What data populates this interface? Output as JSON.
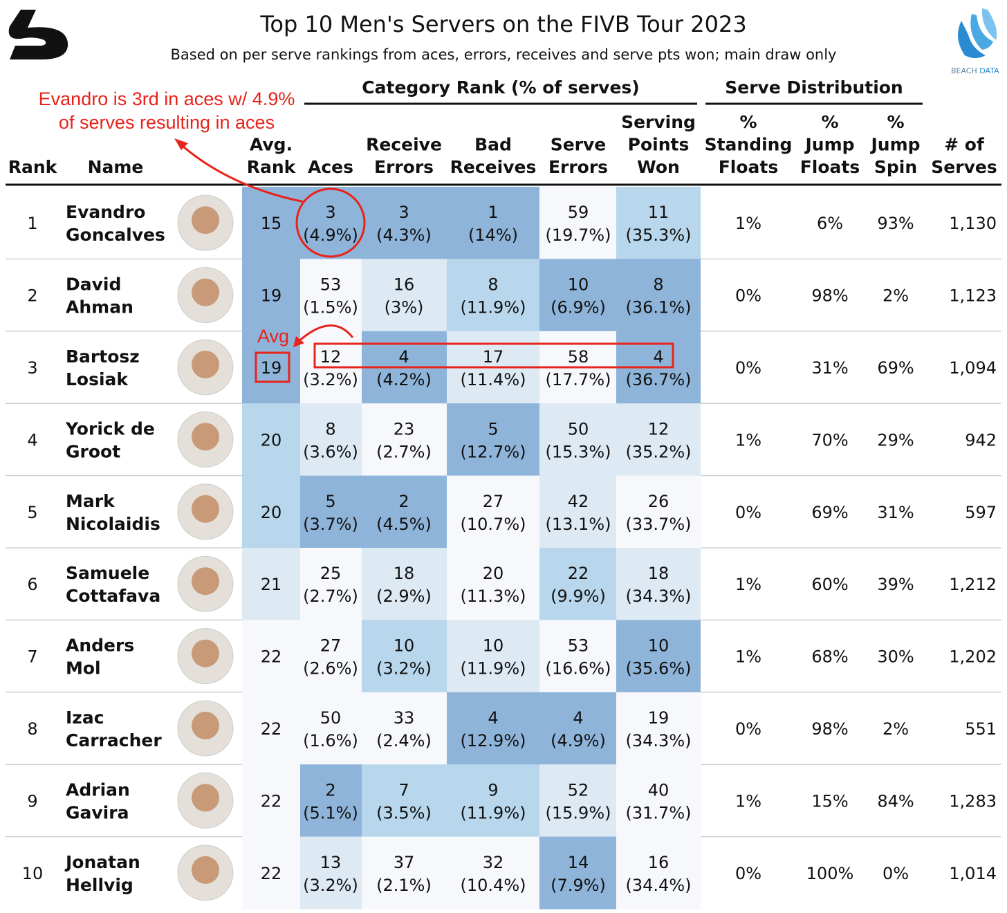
{
  "header": {
    "title": "Top 10 Men's Servers on the FIVB Tour 2023",
    "subtitle": "Based on per serve rankings from aces, errors, receives and serve pts won; main draw only",
    "logo_text": [
      "BEACH",
      "DATA"
    ]
  },
  "annotations": {
    "aces_note": [
      "Evandro is 3rd in aces w/ 4.9%",
      "of serves resulting in aces"
    ],
    "avg_note": "Avg"
  },
  "table": {
    "groups": [
      "Category Rank (% of serves)",
      "Serve Distribution"
    ],
    "columns": [
      [
        "Rank"
      ],
      [
        "Name"
      ],
      [
        "Avg.",
        "Rank"
      ],
      [
        "Aces"
      ],
      [
        "Receive",
        "Errors"
      ],
      [
        "Bad",
        "Receives"
      ],
      [
        "Serve",
        "Errors"
      ],
      [
        "Serving",
        "Points",
        "Won"
      ],
      [
        "%",
        "Standing",
        "Floats"
      ],
      [
        "%",
        "Jump",
        "Floats"
      ],
      [
        "%",
        "Jump",
        "Spin"
      ],
      [
        "# of",
        "Serves"
      ]
    ],
    "dark_cell_color": "#8fb4d9",
    "dark_cell_text_color": "#ffffff",
    "rows": [
      {
        "rank": 1,
        "name": [
          "Evandro",
          "Goncalves"
        ],
        "avg_rank": 15,
        "categories": [
          {
            "rank": 3,
            "pct": "(4.9%)"
          },
          {
            "rank": 3,
            "pct": "(4.3%)"
          },
          {
            "rank": 1,
            "pct": "(14%)"
          },
          {
            "rank": 59,
            "pct": "(19.7%)"
          },
          {
            "rank": 11,
            "pct": "(35.3%)"
          }
        ],
        "distribution": [
          "1%",
          "6%",
          "93%"
        ],
        "serves": "1,130",
        "colors": [
          "#8fb4d9",
          "#8fb4d9",
          "#8fb4d9",
          "#8fb4d9",
          "#f6f8fc",
          "#b8d7ec"
        ]
      },
      {
        "rank": 2,
        "name": [
          "David",
          "Ahman"
        ],
        "avg_rank": 19,
        "categories": [
          {
            "rank": 53,
            "pct": "(1.5%)"
          },
          {
            "rank": 16,
            "pct": "(3%)"
          },
          {
            "rank": 8,
            "pct": "(11.9%)"
          },
          {
            "rank": 10,
            "pct": "(6.9%)"
          },
          {
            "rank": 8,
            "pct": "(36.1%)"
          }
        ],
        "distribution": [
          "0%",
          "98%",
          "2%"
        ],
        "serves": "1,123",
        "colors": [
          "#8fb4d9",
          "#f6f8fc",
          "#dde9f3",
          "#b8d7ec",
          "#8fb4d9",
          "#8fb4d9"
        ]
      },
      {
        "rank": 3,
        "name": [
          "Bartosz",
          "Losiak"
        ],
        "avg_rank": 19,
        "categories": [
          {
            "rank": 12,
            "pct": "(3.2%)"
          },
          {
            "rank": 4,
            "pct": "(4.2%)"
          },
          {
            "rank": 17,
            "pct": "(11.4%)"
          },
          {
            "rank": 58,
            "pct": "(17.7%)"
          },
          {
            "rank": 4,
            "pct": "(36.7%)"
          }
        ],
        "distribution": [
          "0%",
          "31%",
          "69%"
        ],
        "serves": "1,094",
        "colors": [
          "#8fb4d9",
          "#f6f8fc",
          "#8fb4d9",
          "#dde9f3",
          "#f6f8fc",
          "#8fb4d9"
        ]
      },
      {
        "rank": 4,
        "name": [
          "Yorick de",
          "Groot"
        ],
        "avg_rank": 20,
        "categories": [
          {
            "rank": 8,
            "pct": "(3.6%)"
          },
          {
            "rank": 23,
            "pct": "(2.7%)"
          },
          {
            "rank": 5,
            "pct": "(12.7%)"
          },
          {
            "rank": 50,
            "pct": "(15.3%)"
          },
          {
            "rank": 12,
            "pct": "(35.2%)"
          }
        ],
        "distribution": [
          "1%",
          "70%",
          "29%"
        ],
        "serves": "942",
        "colors": [
          "#b8d7ec",
          "#dde9f3",
          "#f6f8fc",
          "#8fb4d9",
          "#dde9f3",
          "#dde9f3"
        ]
      },
      {
        "rank": 5,
        "name": [
          "Mark",
          "Nicolaidis"
        ],
        "avg_rank": 20,
        "categories": [
          {
            "rank": 5,
            "pct": "(3.7%)"
          },
          {
            "rank": 2,
            "pct": "(4.5%)"
          },
          {
            "rank": 27,
            "pct": "(10.7%)"
          },
          {
            "rank": 42,
            "pct": "(13.1%)"
          },
          {
            "rank": 26,
            "pct": "(33.7%)"
          }
        ],
        "distribution": [
          "0%",
          "69%",
          "31%"
        ],
        "serves": "597",
        "colors": [
          "#b8d7ec",
          "#8fb4d9",
          "#8fb4d9",
          "#f6f8fc",
          "#dde9f3",
          "#f6f8fc"
        ]
      },
      {
        "rank": 6,
        "name": [
          "Samuele",
          "Cottafava"
        ],
        "avg_rank": 21,
        "categories": [
          {
            "rank": 25,
            "pct": "(2.7%)"
          },
          {
            "rank": 18,
            "pct": "(2.9%)"
          },
          {
            "rank": 20,
            "pct": "(11.3%)"
          },
          {
            "rank": 22,
            "pct": "(9.9%)"
          },
          {
            "rank": 18,
            "pct": "(34.3%)"
          }
        ],
        "distribution": [
          "1%",
          "60%",
          "39%"
        ],
        "serves": "1,212",
        "colors": [
          "#dde9f3",
          "#f6f8fc",
          "#dde9f3",
          "#f6f8fc",
          "#b8d7ec",
          "#dde9f3"
        ]
      },
      {
        "rank": 7,
        "name": [
          "Anders",
          "Mol"
        ],
        "avg_rank": 22,
        "categories": [
          {
            "rank": 27,
            "pct": "(2.6%)"
          },
          {
            "rank": 10,
            "pct": "(3.2%)"
          },
          {
            "rank": 10,
            "pct": "(11.9%)"
          },
          {
            "rank": 53,
            "pct": "(16.6%)"
          },
          {
            "rank": 10,
            "pct": "(35.6%)"
          }
        ],
        "distribution": [
          "1%",
          "68%",
          "30%"
        ],
        "serves": "1,202",
        "colors": [
          "#f6f8fc",
          "#f6f8fc",
          "#b8d7ec",
          "#dde9f3",
          "#f6f8fc",
          "#8fb4d9"
        ]
      },
      {
        "rank": 8,
        "name": [
          "Izac",
          "Carracher"
        ],
        "avg_rank": 22,
        "categories": [
          {
            "rank": 50,
            "pct": "(1.6%)"
          },
          {
            "rank": 33,
            "pct": "(2.4%)"
          },
          {
            "rank": 4,
            "pct": "(12.9%)"
          },
          {
            "rank": 4,
            "pct": "(4.9%)"
          },
          {
            "rank": 19,
            "pct": "(34.3%)"
          }
        ],
        "distribution": [
          "0%",
          "98%",
          "2%"
        ],
        "serves": "551",
        "colors": [
          "#f6f8fc",
          "#f6f8fc",
          "#f6f8fc",
          "#8fb4d9",
          "#8fb4d9",
          "#f6f8fc"
        ]
      },
      {
        "rank": 9,
        "name": [
          "Adrian",
          "Gavira"
        ],
        "avg_rank": 22,
        "categories": [
          {
            "rank": 2,
            "pct": "(5.1%)"
          },
          {
            "rank": 7,
            "pct": "(3.5%)"
          },
          {
            "rank": 9,
            "pct": "(11.9%)"
          },
          {
            "rank": 52,
            "pct": "(15.9%)"
          },
          {
            "rank": 40,
            "pct": "(31.7%)"
          }
        ],
        "distribution": [
          "1%",
          "15%",
          "84%"
        ],
        "serves": "1,283",
        "colors": [
          "#f6f8fc",
          "#8fb4d9",
          "#b8d7ec",
          "#b8d7ec",
          "#dde9f3",
          "#f6f8fc"
        ]
      },
      {
        "rank": 10,
        "name": [
          "Jonatan",
          "Hellvig"
        ],
        "avg_rank": 22,
        "categories": [
          {
            "rank": 13,
            "pct": "(3.2%)"
          },
          {
            "rank": 37,
            "pct": "(2.1%)"
          },
          {
            "rank": 32,
            "pct": "(10.4%)"
          },
          {
            "rank": 14,
            "pct": "(7.9%)"
          },
          {
            "rank": 16,
            "pct": "(34.4%)"
          }
        ],
        "distribution": [
          "0%",
          "100%",
          "0%"
        ],
        "serves": "1,014",
        "colors": [
          "#f6f8fc",
          "#dde9f3",
          "#f6f8fc",
          "#f6f8fc",
          "#8fb4d9",
          "#f6f8fc"
        ]
      }
    ]
  }
}
